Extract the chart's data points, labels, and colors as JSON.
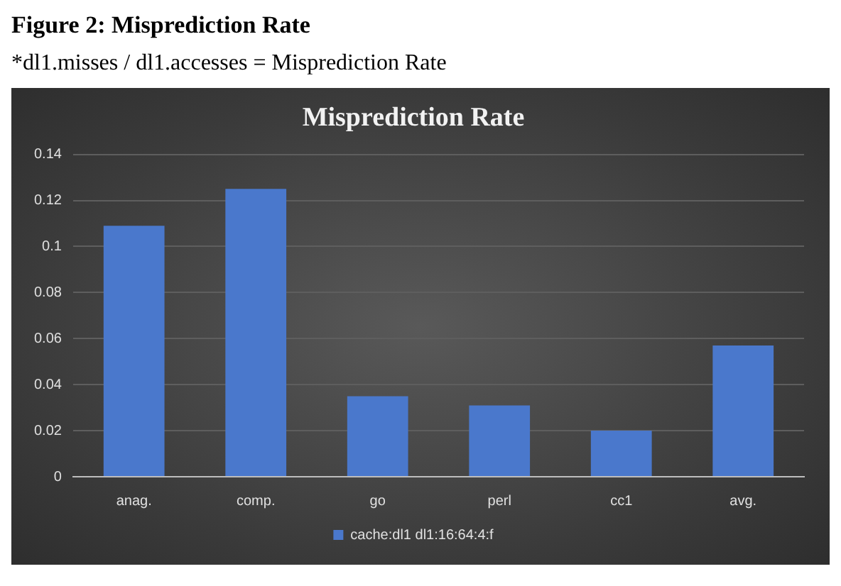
{
  "chart_data": {
    "type": "bar",
    "title": "Misprediction Rate",
    "annotations": [
      "Figure 2: Misprediction Rate",
      "*dl1.misses / dl1.accesses = Misprediction Rate"
    ],
    "categories": [
      "anag.",
      "comp.",
      "go",
      "perl",
      "cc1",
      "avg."
    ],
    "series": [
      {
        "name": "cache:dl1 dl1:16:64:4:f",
        "color": "#4a78cc",
        "values": [
          0.109,
          0.125,
          0.035,
          0.031,
          0.02,
          0.057
        ]
      }
    ],
    "ylim": [
      0,
      0.14
    ],
    "yticks": [
      0,
      0.02,
      0.04,
      0.06,
      0.08,
      0.1,
      0.12,
      0.14
    ],
    "grid": "y",
    "legend": "bottom"
  }
}
